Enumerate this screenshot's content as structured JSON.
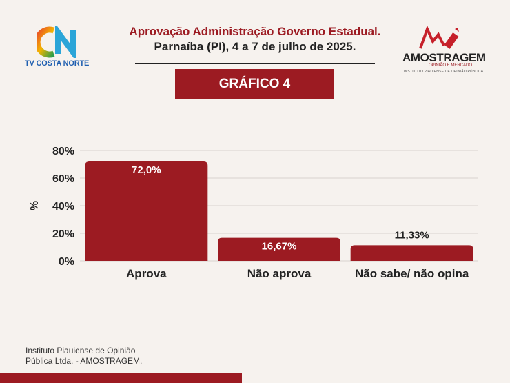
{
  "header": {
    "title": "Aprovação Administração Governo Estadual.",
    "subtitle": "Parnaíba (PI), 4 a 7 de julho de 2025."
  },
  "logo_left": {
    "monogram": "CN",
    "name": "TV COSTA NORTE"
  },
  "logo_right": {
    "brand": "AMOSTRAGEM",
    "tagline": "OPINIÃO E MERCADO",
    "institute": "INSTITUTO PIAUIENSE DE OPINIÃO PÚBLICA"
  },
  "badge": "GRÁFICO 4",
  "chart_data": {
    "type": "bar",
    "categories": [
      "Aprova",
      "Não aprova",
      "Não sabe/ não opina"
    ],
    "values": [
      72.0,
      16.67,
      11.33
    ],
    "value_labels": [
      "72,0%",
      "16,67%",
      "11,33%"
    ],
    "ylabel": "%",
    "ylim": [
      0,
      80
    ],
    "yticks": [
      0,
      20,
      40,
      60,
      80
    ],
    "ytick_labels": [
      "0%",
      "20%",
      "40%",
      "60%",
      "80%"
    ],
    "grid": true,
    "bar_color": "#9c1b22"
  },
  "footer": {
    "line1": "Instituto Piauiense de Opinião",
    "line2": "Pública Ltda. - AMOSTRAGEM."
  }
}
